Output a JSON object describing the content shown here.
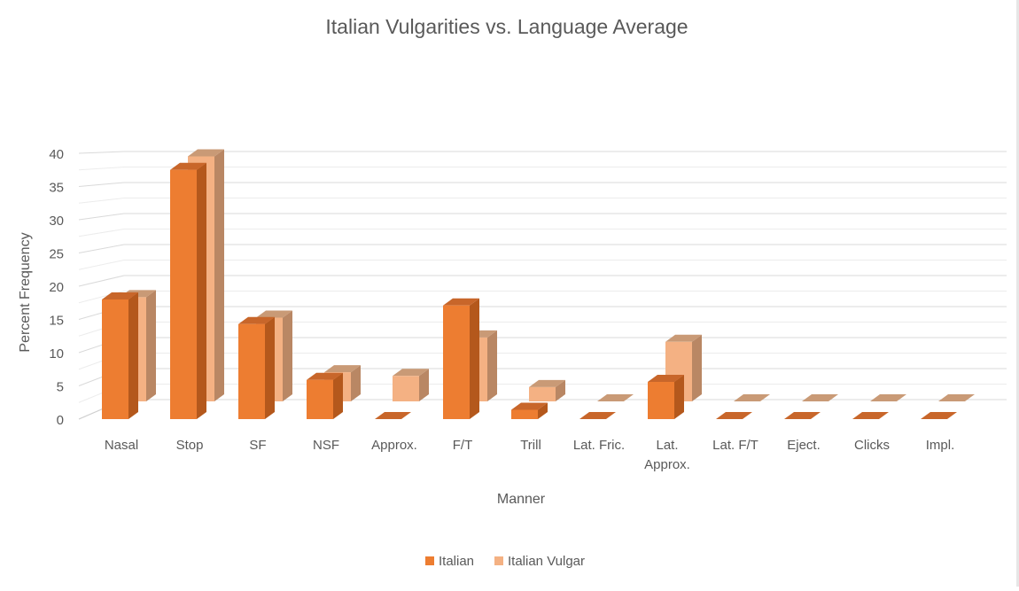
{
  "chart_data": {
    "type": "bar",
    "title": "Italian Vulgarities vs. Language Average",
    "xlabel": "Manner",
    "ylabel": "Percent Frequency",
    "ylim": [
      0,
      40
    ],
    "yticks": [
      0,
      5,
      10,
      15,
      20,
      25,
      30,
      35,
      40
    ],
    "categories": [
      "Nasal",
      "Stop",
      "SF",
      "NSF",
      "Approx.",
      "F/T",
      "Trill",
      "Lat. Fric.",
      "Lat. Approx.",
      "Lat. F/T",
      "Eject.",
      "Clicks",
      "Impl."
    ],
    "series": [
      {
        "name": "Italian",
        "values": [
          18,
          37.5,
          14.3,
          5.9,
          0,
          17.1,
          1.4,
          0,
          5.6,
          0,
          0,
          0,
          0
        ]
      },
      {
        "name": "Italian Vulgar",
        "values": [
          16.8,
          39.5,
          13.5,
          4.7,
          4.1,
          10.3,
          2.3,
          0,
          9.6,
          0,
          0,
          0,
          0
        ]
      }
    ],
    "legend_position": "bottom",
    "grid": true,
    "style": "3d-clustered-column",
    "colors": {
      "italian_front": "#ed7d31",
      "italian_side": "#b4581c",
      "italian_top": "#c8662a",
      "vulgar_front": "#f4b183",
      "vulgar_side": "#b98764",
      "vulgar_top": "#c99a76",
      "gridline": "#d9d9d9",
      "text": "#595959"
    }
  }
}
